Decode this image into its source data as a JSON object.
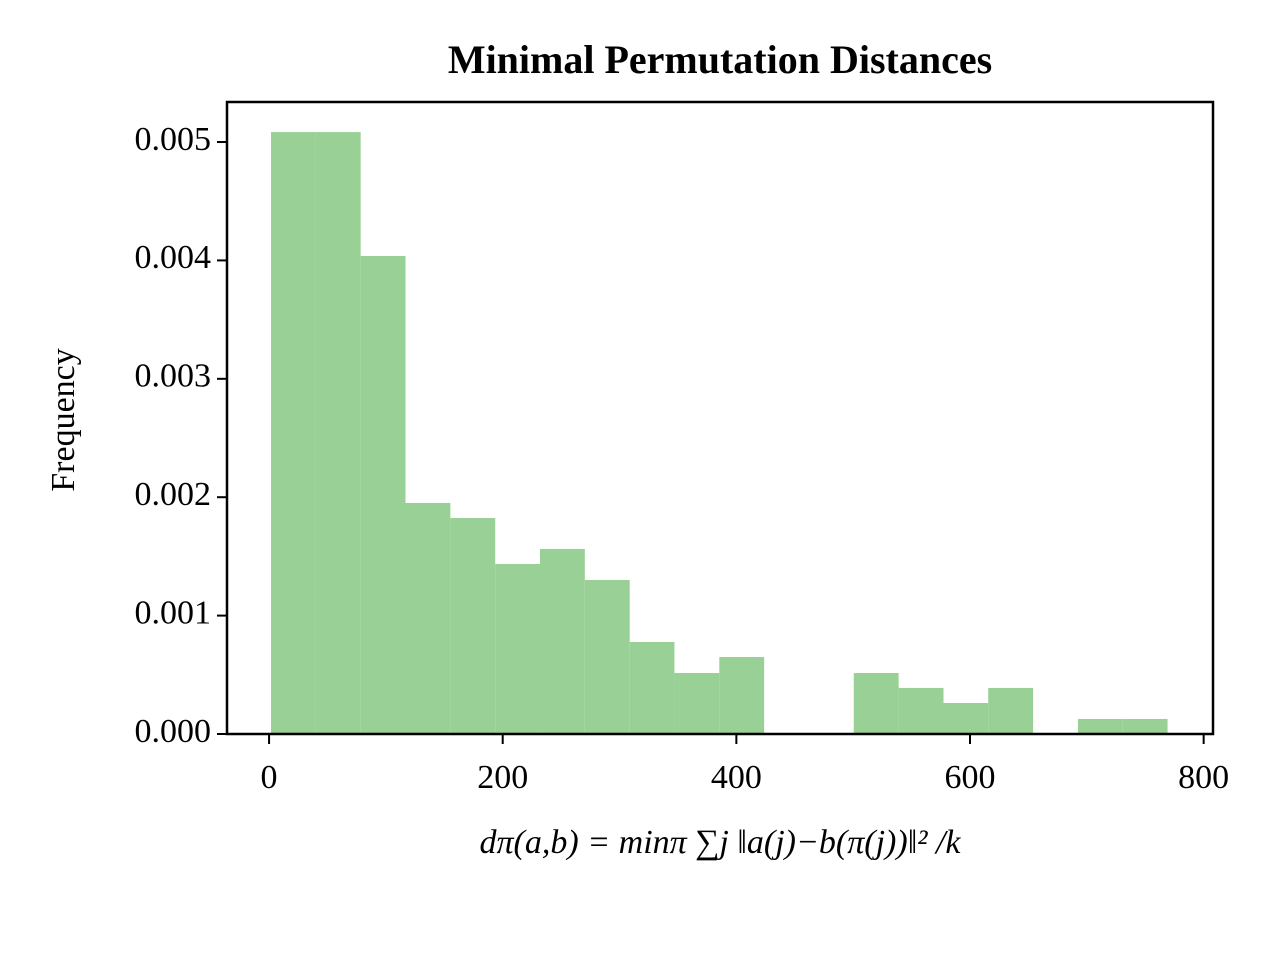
{
  "chart_data": {
    "type": "histogram",
    "title": "Minimal Permutation Distances",
    "x_label": "dπ(a,b) = minπ ∑j ‖a(j)−b(π(j))‖² /k",
    "y_label": "Frequency",
    "color": "#98d095",
    "bins": [
      1.7,
      40.1,
      78.4,
      116.8,
      155.2,
      193.6,
      231.9,
      270.3,
      308.7,
      347.0,
      385.4,
      423.8,
      462.1,
      500.5,
      538.9,
      577.3,
      615.6,
      654.0,
      692.4,
      730.7,
      769.1
    ],
    "values": [
      0.005084,
      0.005084,
      0.004037,
      0.001951,
      0.001824,
      0.001436,
      0.001563,
      0.001301,
      0.000777,
      0.000515,
      0.00065,
      0,
      0,
      0.000515,
      0.000389,
      0.000262,
      0.000389,
      0,
      0.000127,
      0.000127
    ],
    "xlim": [
      -36,
      808
    ],
    "ylim": [
      0,
      0.005338
    ],
    "xticks": [
      0,
      200,
      400,
      600,
      800
    ],
    "yticks": [
      {
        "value": 0,
        "label": "0.000"
      },
      {
        "value": 0.001,
        "label": "0.001"
      },
      {
        "value": 0.002,
        "label": "0.002"
      },
      {
        "value": 0.003,
        "label": "0.003"
      },
      {
        "value": 0.004,
        "label": "0.004"
      },
      {
        "value": 0.005,
        "label": "0.005"
      }
    ]
  }
}
